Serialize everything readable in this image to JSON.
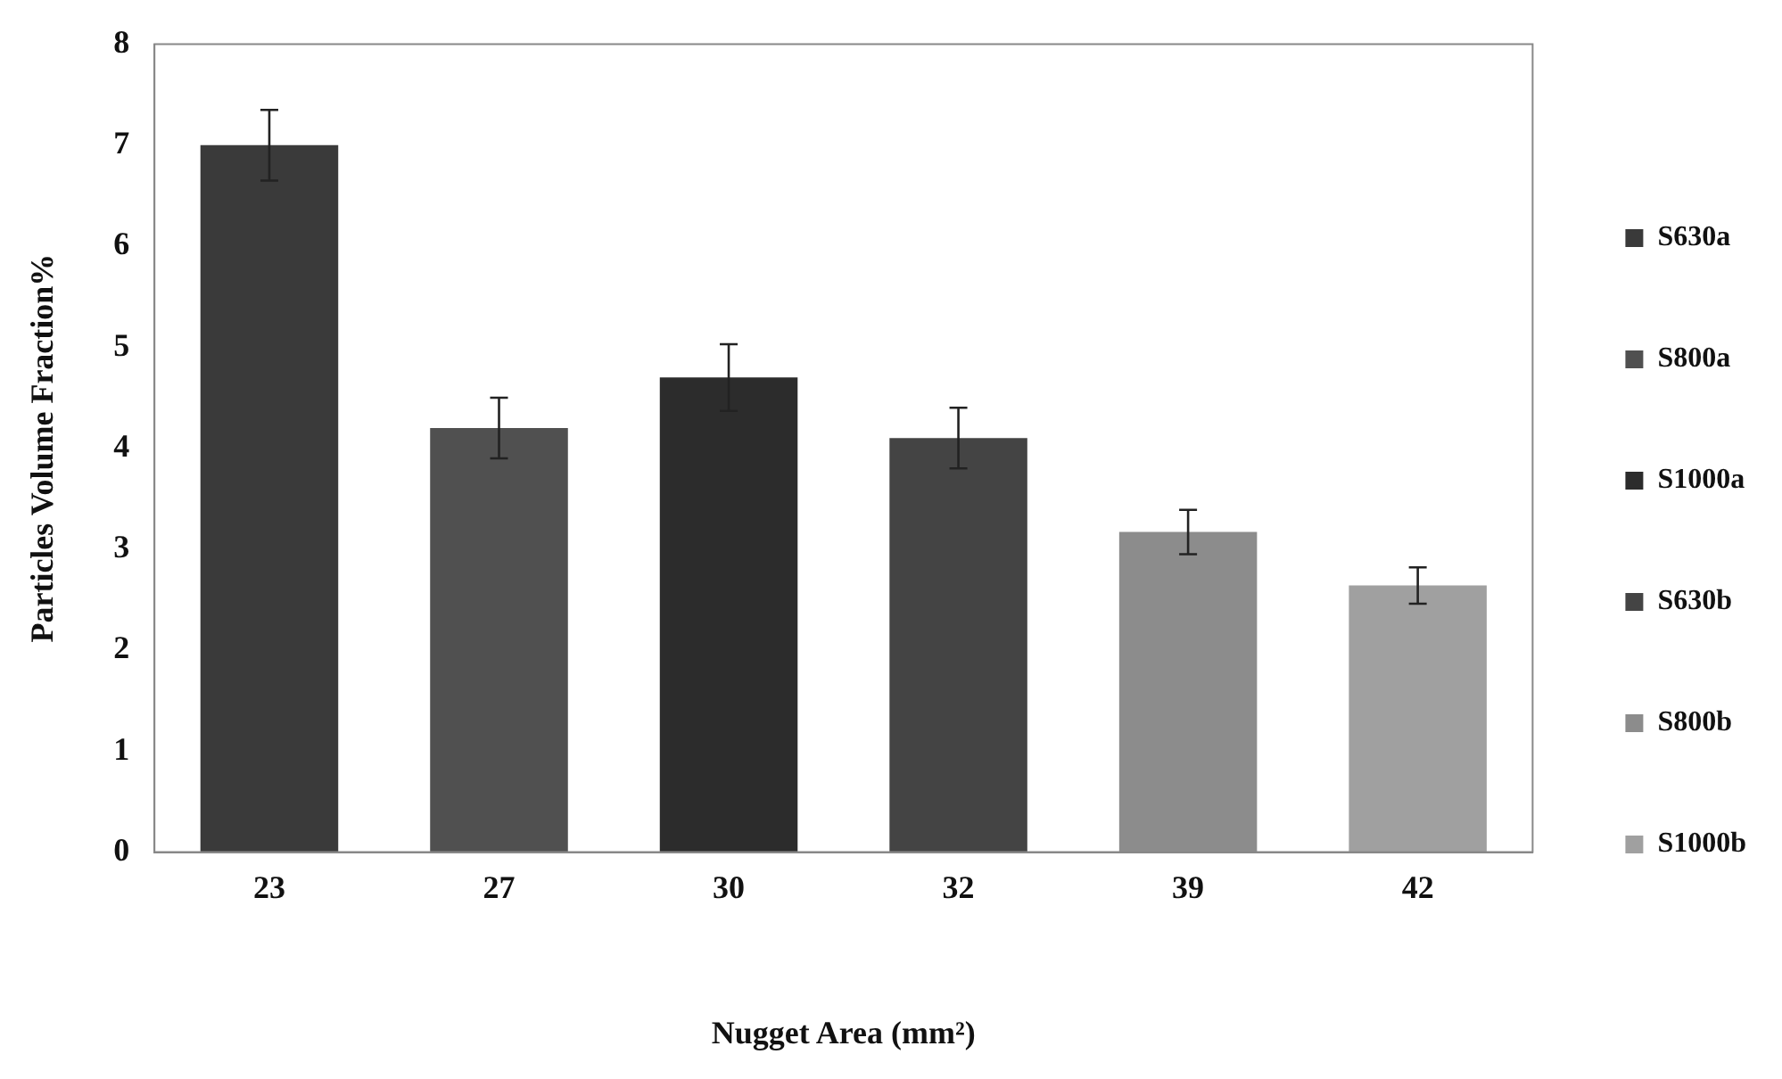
{
  "chart_data": {
    "type": "bar",
    "xlabel": "Nugget Area (mm²)",
    "ylabel": "Particles Volume Fraction%",
    "categories": [
      "23",
      "27",
      "30",
      "32",
      "39",
      "42"
    ],
    "series": [
      {
        "name": "S630a",
        "color": "#3a3a3a",
        "values": [
          7.0,
          null,
          null,
          null,
          null,
          null
        ],
        "errors": [
          0.35,
          null,
          null,
          null,
          null,
          null
        ]
      },
      {
        "name": "S800a",
        "color": "#505050",
        "values": [
          null,
          4.2,
          null,
          null,
          null,
          null
        ],
        "errors": [
          null,
          0.3,
          null,
          null,
          null,
          null
        ]
      },
      {
        "name": "S1000a",
        "color": "#2c2c2c",
        "values": [
          null,
          null,
          4.7,
          null,
          null,
          null
        ],
        "errors": [
          null,
          null,
          0.33,
          null,
          null,
          null
        ]
      },
      {
        "name": "S630b",
        "color": "#444444",
        "values": [
          null,
          null,
          null,
          4.1,
          null,
          null
        ],
        "errors": [
          null,
          null,
          null,
          0.3,
          null,
          null
        ]
      },
      {
        "name": "S800b",
        "color": "#8c8c8c",
        "values": [
          null,
          null,
          null,
          null,
          3.17,
          null
        ],
        "errors": [
          null,
          null,
          null,
          null,
          0.22,
          null
        ]
      },
      {
        "name": "S1000b",
        "color": "#a0a0a0",
        "values": [
          null,
          null,
          null,
          null,
          null,
          2.64
        ],
        "errors": [
          null,
          null,
          null,
          null,
          null,
          0.18
        ]
      }
    ],
    "ylim": [
      0,
      8
    ],
    "yticks": [
      0,
      1,
      2,
      3,
      4,
      5,
      6,
      7,
      8
    ],
    "grid": false,
    "legend": "right"
  }
}
